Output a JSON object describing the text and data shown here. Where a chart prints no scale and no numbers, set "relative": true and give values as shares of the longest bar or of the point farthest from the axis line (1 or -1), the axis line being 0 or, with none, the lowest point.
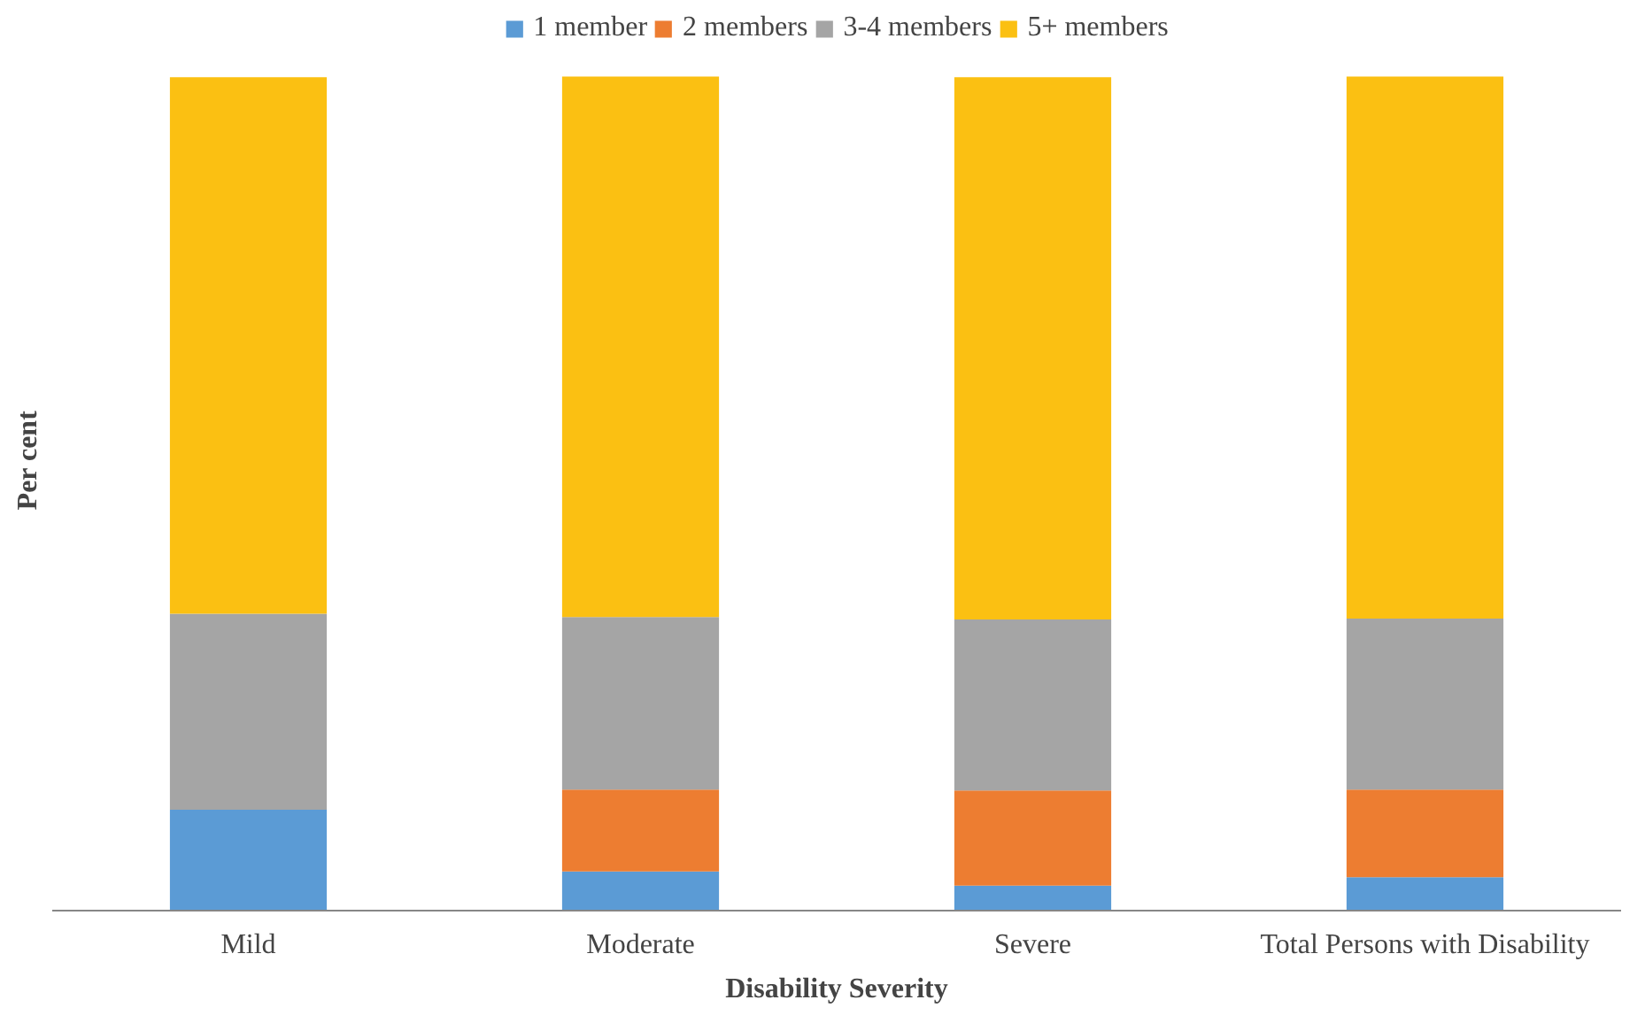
{
  "chart_data": {
    "type": "bar",
    "stacked": true,
    "relative": true,
    "xlabel": "Disability Severity",
    "ylabel": "Per cent",
    "categories": [
      "Mild",
      "Moderate",
      "Severe",
      "Total Persons with Disability"
    ],
    "series": [
      {
        "name": "1 member",
        "color": "#5b9bd5",
        "values": [
          0.121,
          0.047,
          0.03,
          0.04
        ]
      },
      {
        "name": "2 members",
        "color": "#ed7d31",
        "values": [
          0,
          0.098,
          0.114,
          0.105
        ]
      },
      {
        "name": "3-4 members",
        "color": "#a5a5a5",
        "values": [
          0.235,
          0.207,
          0.205,
          0.205
        ]
      },
      {
        "name": "5+ members",
        "color": "#fbc012",
        "values": [
          0.643,
          0.648,
          0.65,
          0.65
        ]
      }
    ],
    "legend": "top"
  }
}
